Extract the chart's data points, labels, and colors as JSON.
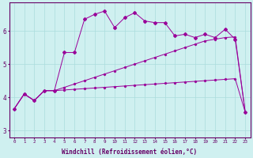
{
  "xlabel": "Windchill (Refroidissement éolien,°C)",
  "bg_color": "#cff0f0",
  "line_color": "#990099",
  "grid_color": "#aadddd",
  "axis_color": "#660066",
  "xlim": [
    -0.5,
    23.5
  ],
  "ylim": [
    2.8,
    6.85
  ],
  "yticks": [
    3,
    4,
    5,
    6
  ],
  "xticks": [
    0,
    1,
    2,
    3,
    4,
    5,
    6,
    7,
    8,
    9,
    10,
    11,
    12,
    13,
    14,
    15,
    16,
    17,
    18,
    19,
    20,
    21,
    22,
    23
  ],
  "series1_x": [
    0,
    1,
    2,
    3,
    4,
    5,
    6,
    7,
    8,
    9,
    10,
    11,
    12,
    13,
    14,
    15,
    16,
    17,
    18,
    19,
    20,
    21,
    22,
    23
  ],
  "series1_y": [
    3.65,
    4.1,
    3.9,
    4.2,
    4.2,
    5.35,
    5.35,
    6.35,
    6.5,
    6.6,
    6.1,
    6.4,
    6.55,
    6.3,
    6.25,
    6.25,
    5.85,
    5.9,
    5.8,
    5.9,
    5.8,
    6.05,
    5.75,
    3.55
  ],
  "series2_x": [
    0,
    1,
    2,
    3,
    4,
    5,
    6,
    7,
    8,
    9,
    10,
    11,
    12,
    13,
    14,
    15,
    16,
    17,
    18,
    19,
    20,
    21,
    22,
    23
  ],
  "series2_y": [
    3.65,
    4.1,
    3.9,
    4.2,
    4.2,
    4.3,
    4.4,
    4.5,
    4.6,
    4.7,
    4.8,
    4.9,
    5.0,
    5.1,
    5.2,
    5.3,
    5.4,
    5.5,
    5.6,
    5.7,
    5.75,
    5.8,
    5.82,
    3.55
  ],
  "series3_x": [
    0,
    1,
    2,
    3,
    4,
    5,
    6,
    7,
    8,
    9,
    10,
    11,
    12,
    13,
    14,
    15,
    16,
    17,
    18,
    19,
    20,
    21,
    22,
    23
  ],
  "series3_y": [
    3.65,
    4.1,
    3.9,
    4.2,
    4.2,
    4.22,
    4.24,
    4.26,
    4.28,
    4.3,
    4.32,
    4.34,
    4.36,
    4.38,
    4.4,
    4.42,
    4.44,
    4.46,
    4.48,
    4.5,
    4.52,
    4.54,
    4.56,
    3.55
  ]
}
